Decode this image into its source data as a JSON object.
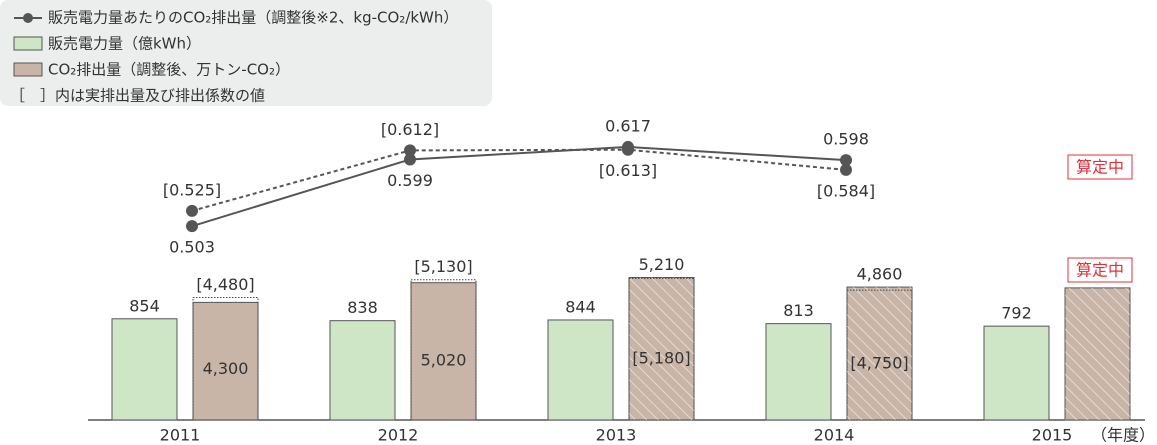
{
  "chart_data": [
    {
      "type": "line",
      "categories": [
        "2011",
        "2012",
        "2013",
        "2014",
        "2015"
      ],
      "note": "［　］内は実排出量及び排出係数の値",
      "annotation": "算定中",
      "ylim": [
        0.45,
        0.65
      ],
      "series": [
        {
          "name": "販売電力量あたりのCO₂排出量（調整後※2、kg-CO₂/kWh）",
          "color": "#555555",
          "dashed": false,
          "values": [
            0.503,
            0.599,
            0.617,
            0.598,
            null
          ]
        },
        {
          "color": "#555555",
          "dashed": true,
          "values": [
            0.525,
            0.612,
            0.613,
            0.584,
            null
          ],
          "value_labels": [
            "[0.525]",
            "[0.612]",
            "[0.613]",
            "[0.584]",
            null
          ]
        }
      ]
    },
    {
      "type": "bar",
      "categories": [
        "2011",
        "2012",
        "2013",
        "2014",
        "2015"
      ],
      "xlabel": "（年度）",
      "annotation": "算定中",
      "ylim": [
        0,
        1350
      ],
      "y2lim": [
        0,
        5850
      ],
      "series": [
        {
          "name": "販売電力量（億kWh）",
          "color": "#cfe6c6",
          "values": [
            854,
            838,
            844,
            813,
            792
          ]
        },
        {
          "name": "CO₂排出量（調整後、万トン-CO₂）",
          "color": "#c9b5a7",
          "axis": "y2",
          "hatched": [
            false,
            false,
            true,
            true,
            true
          ],
          "values": [
            4300,
            5020,
            5210,
            4860,
            4830
          ],
          "value_labels": [
            "4,300",
            "5,020",
            "5,210",
            "4,860",
            null
          ]
        },
        {
          "axis": "y2",
          "outline": "dotted",
          "values": [
            4480,
            5130,
            5180,
            4750,
            null
          ],
          "value_labels": [
            "[4,480]",
            "[5,130]",
            "[5,180]",
            "[4,750]",
            null
          ]
        }
      ]
    }
  ]
}
